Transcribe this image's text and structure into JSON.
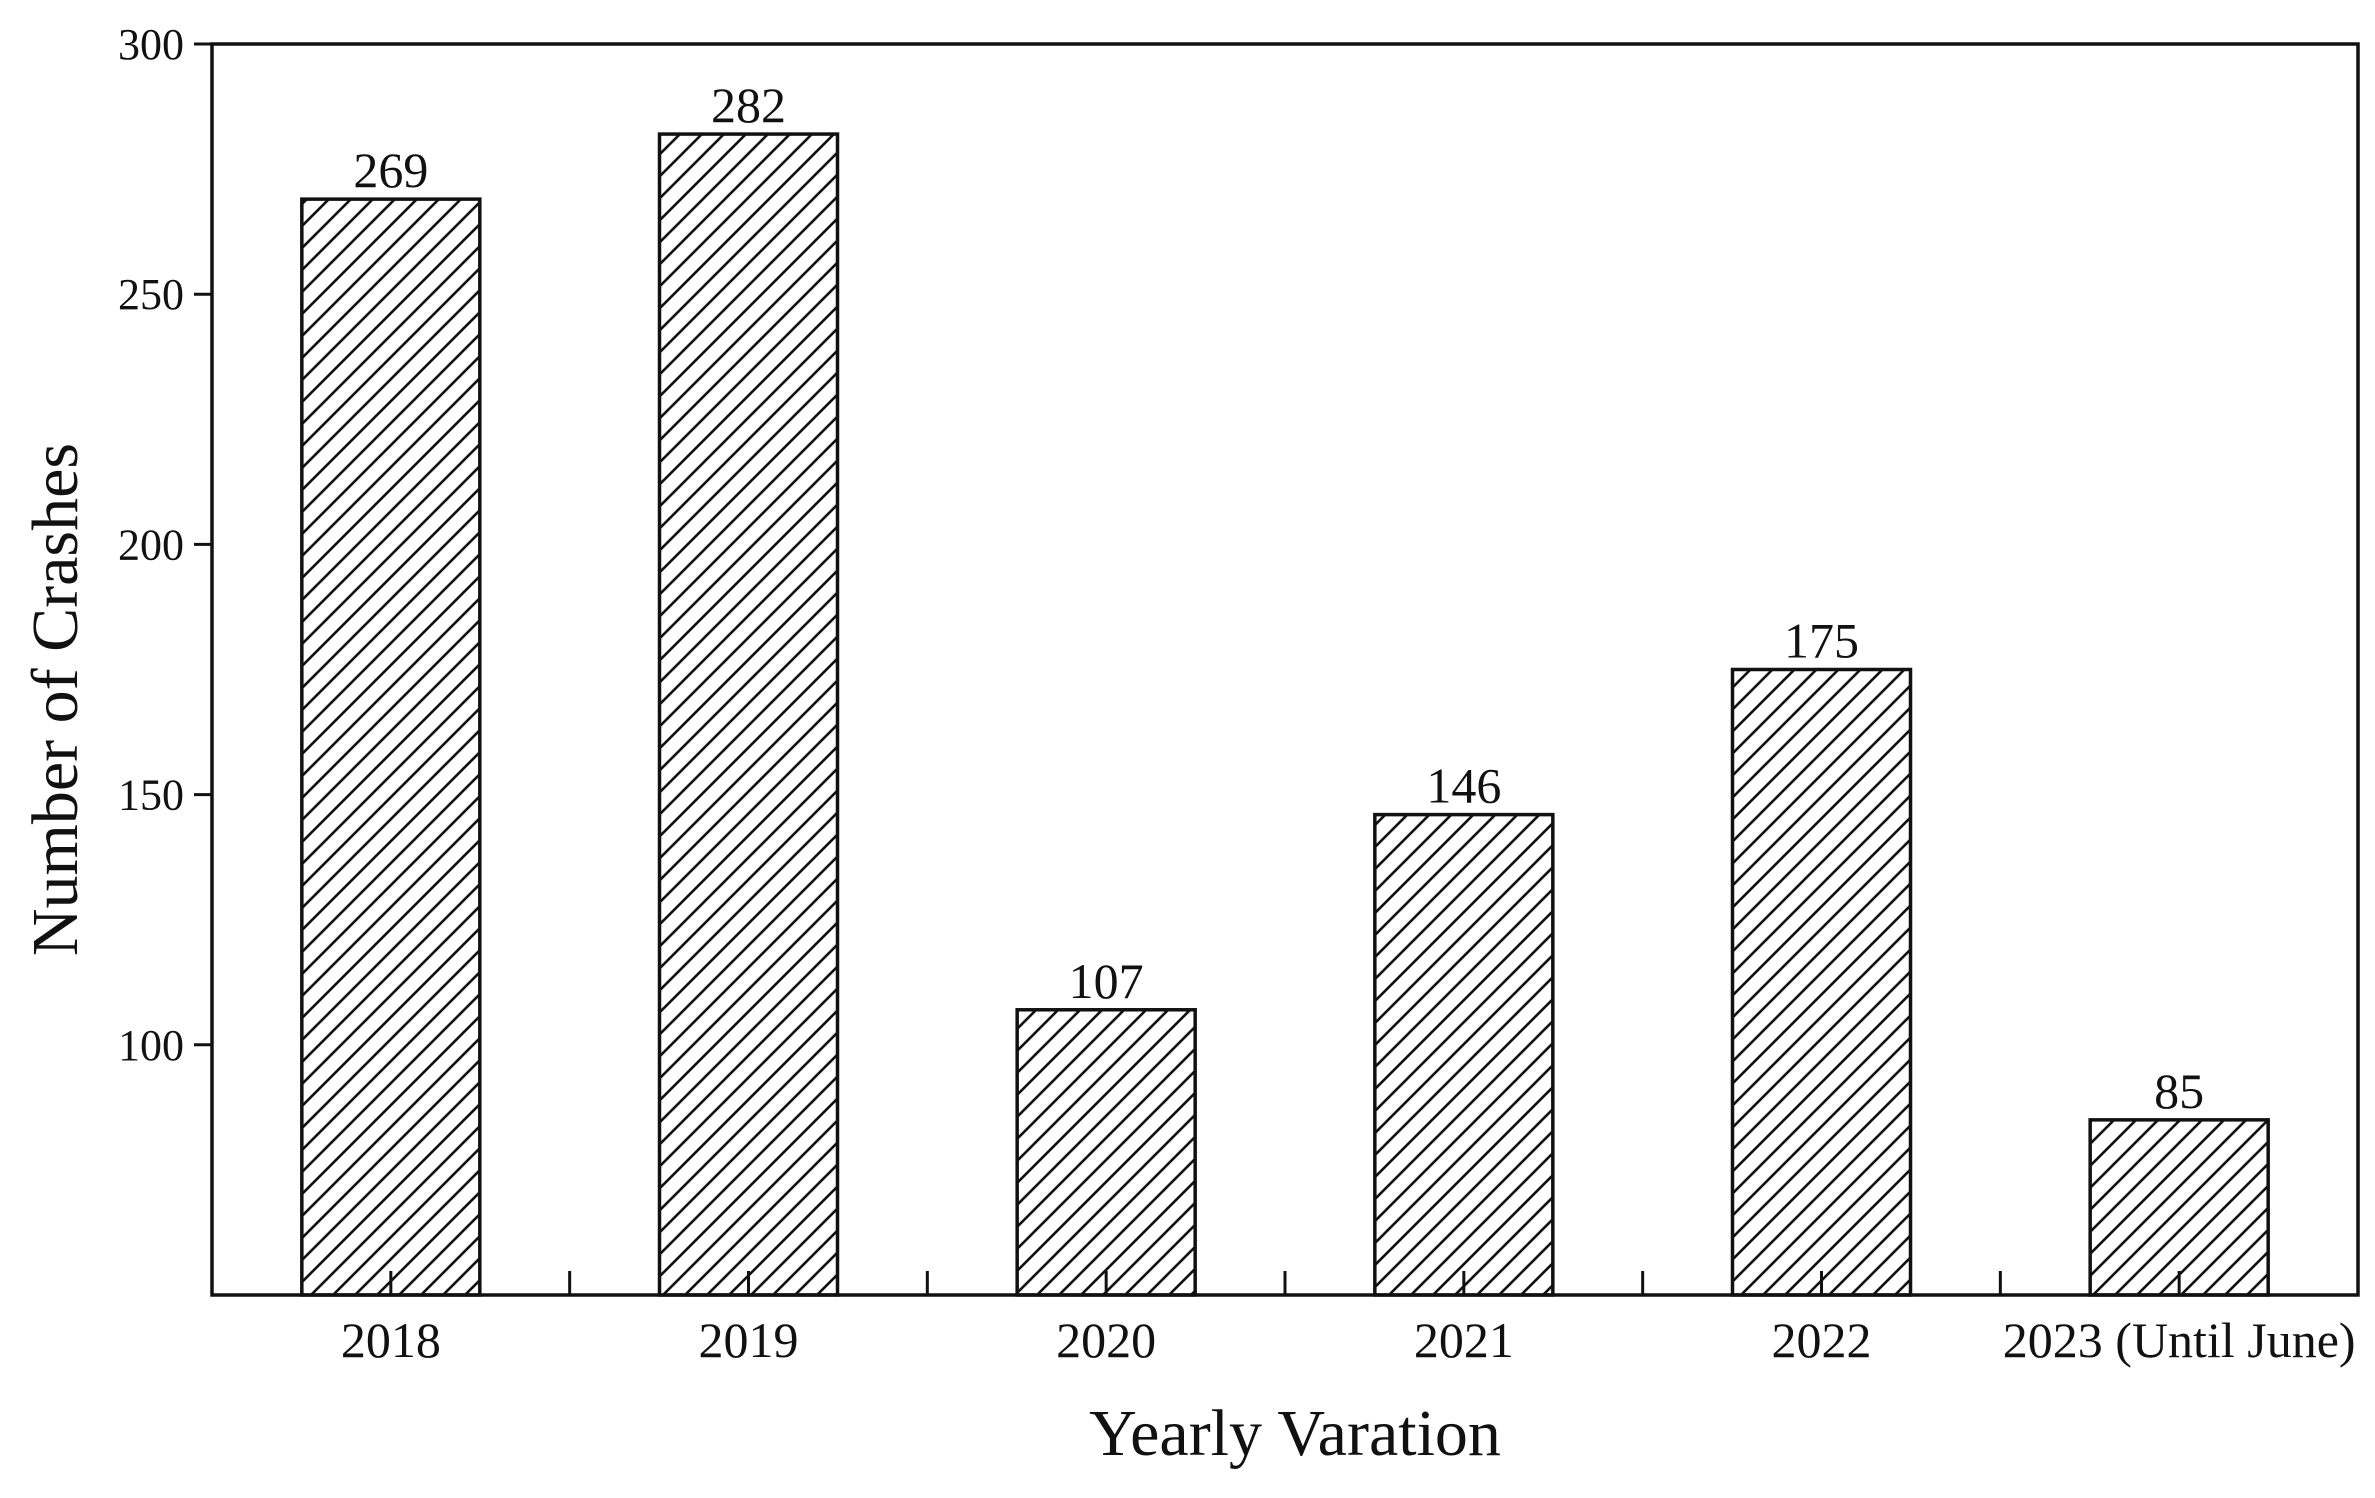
{
  "chart_data": {
    "type": "bar",
    "title": "",
    "xlabel": "Yearly Varation",
    "ylabel": "Number of Crashes",
    "categories": [
      "2018",
      "2019",
      "2020",
      "2021",
      "2022",
      "2023 (Until June)"
    ],
    "values": [
      269,
      282,
      107,
      146,
      175,
      85
    ],
    "data_labels": [
      "269",
      "282",
      "107",
      "146",
      "175",
      "85"
    ],
    "ylim": [
      50,
      300
    ],
    "yticks": [
      100,
      150,
      200,
      250,
      300
    ],
    "ytick_labels": [
      "100",
      "150",
      "200",
      "250",
      "300"
    ],
    "grid": false,
    "legend": "none",
    "bar_fill": "diagonal hatch",
    "colors": {
      "bar_stroke": "#111111",
      "hatch": "#111111",
      "background": "#ffffff"
    }
  }
}
